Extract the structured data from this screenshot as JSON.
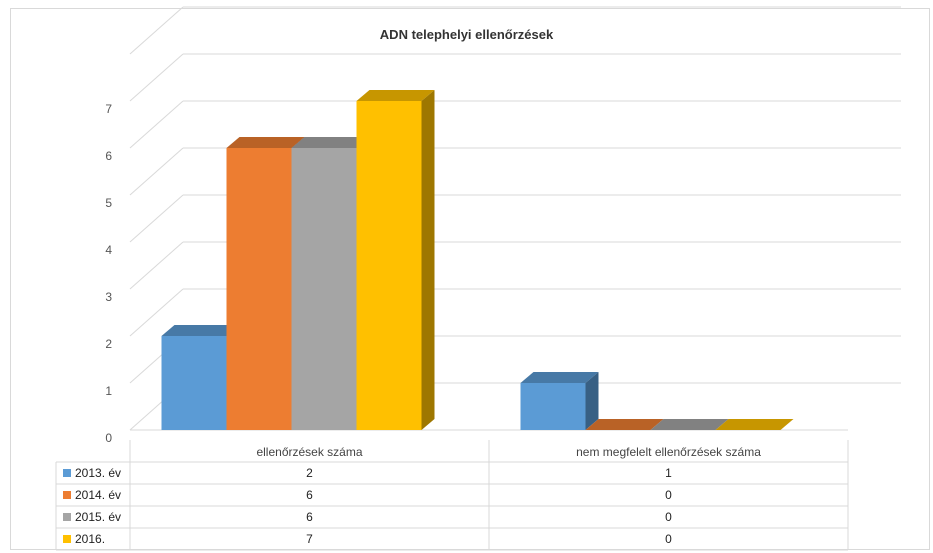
{
  "chart_data": {
    "type": "bar",
    "title": "ADN telephelyi ellenőrzések",
    "categories": [
      "ellenőrzések száma",
      "nem megfelelt ellenőrzések száma"
    ],
    "series": [
      {
        "name": "2013. év",
        "values": [
          2,
          1
        ],
        "color": "#5B9BD5"
      },
      {
        "name": "2014. év",
        "values": [
          6,
          0
        ],
        "color": "#ED7D31"
      },
      {
        "name": "2015. év",
        "values": [
          6,
          0
        ],
        "color": "#A5A5A5"
      },
      {
        "name": "2016.",
        "values": [
          7,
          0
        ],
        "color": "#FFC000"
      }
    ],
    "ylim": [
      0,
      7
    ],
    "yticks": [
      0,
      1,
      2,
      3,
      4,
      5,
      6,
      7
    ],
    "grid": true,
    "legend": "data-table"
  }
}
